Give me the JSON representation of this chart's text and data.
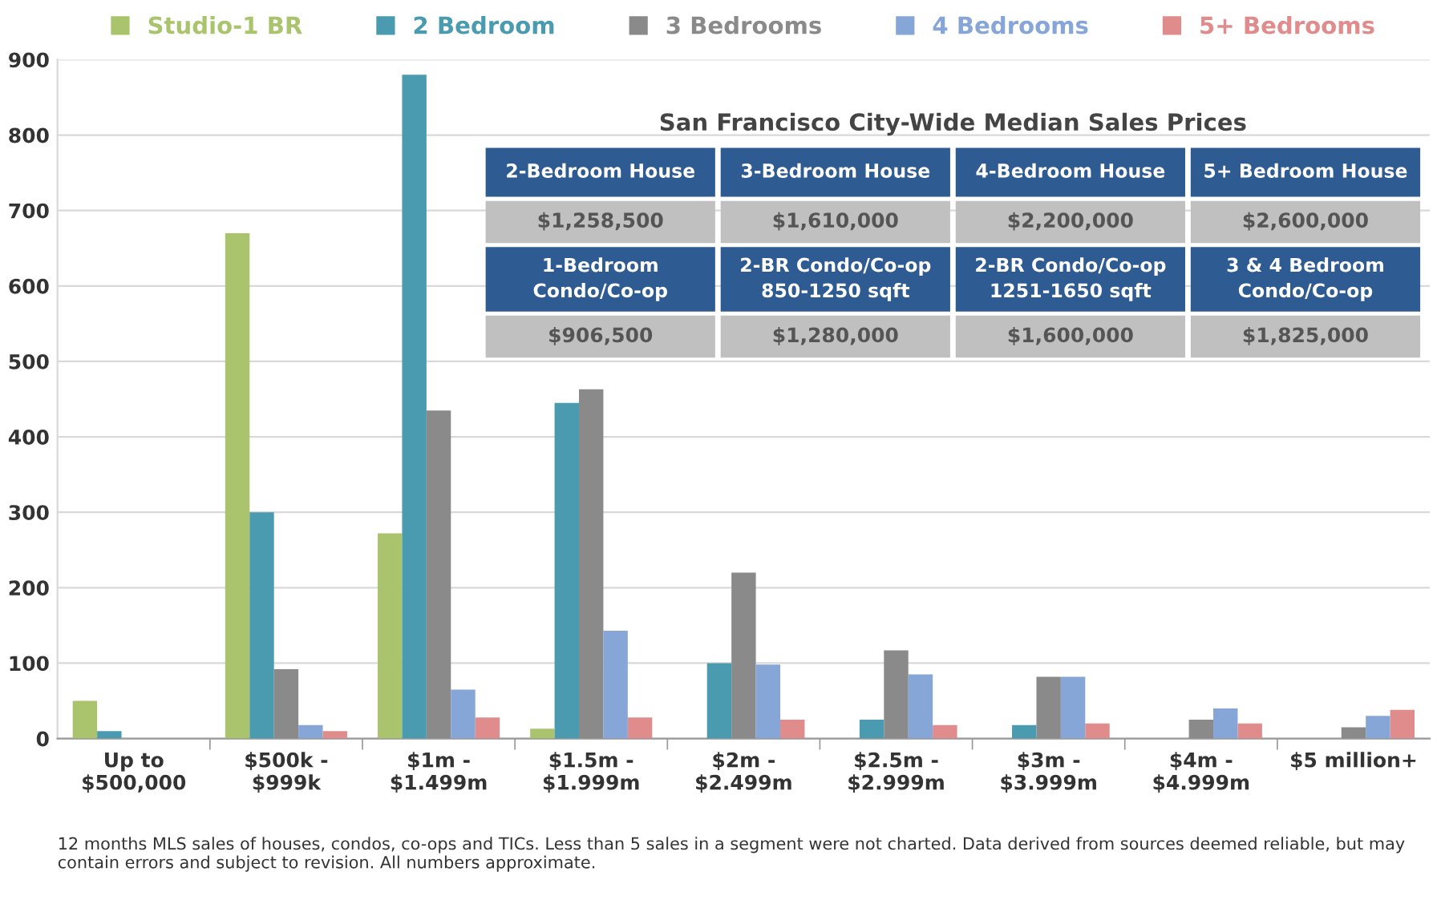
{
  "chart_data": {
    "type": "bar",
    "categories": [
      "Up to\n$500,000",
      "$500k -\n$999k",
      "$1m -\n$1.499m",
      "$1.5m -\n$1.999m",
      "$2m -\n$2.499m",
      "$2.5m -\n$2.999m",
      "$3m -\n$3.999m",
      "$4m -\n$4.999m",
      "$5 million+"
    ],
    "series": [
      {
        "name": "Studio-1 BR",
        "color": "#a9c46c",
        "values": [
          50,
          670,
          272,
          13,
          null,
          null,
          null,
          null,
          null
        ]
      },
      {
        "name": "2 Bedroom",
        "color": "#4a9bb0",
        "values": [
          10,
          300,
          880,
          445,
          100,
          25,
          18,
          null,
          null
        ]
      },
      {
        "name": "3 Bedrooms",
        "color": "#8a8a8a",
        "values": [
          null,
          92,
          435,
          463,
          220,
          117,
          82,
          25,
          15
        ]
      },
      {
        "name": "4 Bedrooms",
        "color": "#86a6d8",
        "values": [
          null,
          18,
          65,
          143,
          98,
          85,
          82,
          40,
          30
        ]
      },
      {
        "name": "5+ Bedrooms",
        "color": "#e08c8c",
        "values": [
          null,
          10,
          28,
          28,
          25,
          18,
          20,
          20,
          38
        ]
      }
    ],
    "ylim": [
      0,
      900
    ],
    "yticks": [
      0,
      100,
      200,
      300,
      400,
      500,
      600,
      700,
      800,
      900
    ],
    "grid": "y",
    "legend": "top",
    "annotations": [
      "San Francisco City-Wide Median Sales Prices",
      "2-Bedroom House",
      "3-Bedroom House",
      "4-Bedroom House",
      "5+ Bedroom House",
      "$1,258,500",
      "$1,610,000",
      "$2,200,000",
      "$2,600,000",
      "1-Bedroom\nCondo/Co-op",
      "2-BR Condo/Co-op\n850-1250 sqft",
      "2-BR Condo/Co-op\n1251-1650 sqft",
      "3 & 4 Bedroom\nCondo/Co-op",
      "$906,500",
      "$1,280,000",
      "$1,600,000",
      "$1,825,000",
      "12 months MLS sales of houses, condos, co-ops and TICs. Less than 5 sales in a segment were not charted. Data derived from sources deemed reliable, but may contain errors and subject to revision. All numbers approximate."
    ]
  }
}
